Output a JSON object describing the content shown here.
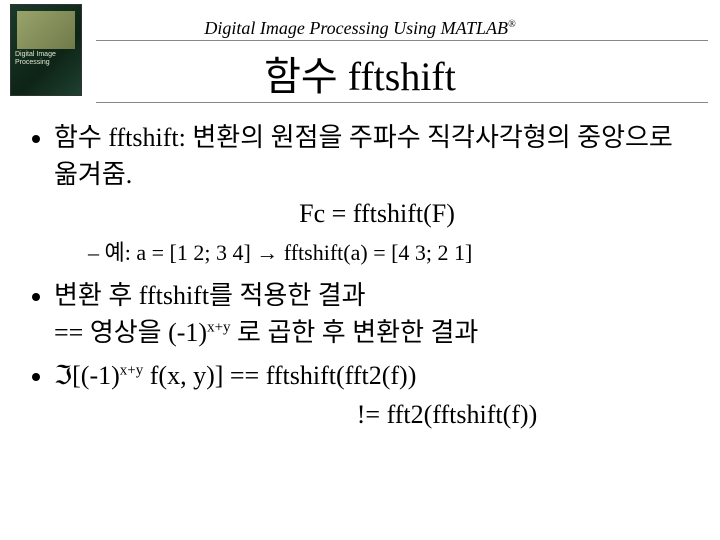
{
  "header_text_main": "Digital Image Processing Using MATLAB",
  "header_text_sup": "®",
  "title": "함수 fftshift",
  "book": {
    "line1": "Digital Image",
    "line2": "Processing"
  },
  "b1_lead": "함수 fftshift: ",
  "b1_rest": "변환의 원점을 주파수 직각사각형의 중앙으로 옮겨줌.",
  "formula": "Fc = fftshift(F)",
  "ex_lead": "예: ",
  "ex_rest": "a = [1 2; 3 4] → fftshift(a) = [4 3; 2 1]",
  "b2_line1": "변환 후 fftshift를 적용한 결과",
  "b2_eq": "== ",
  "b2_line2a": "영상을 (-1)",
  "b2_exp": "x+y",
  "b2_line2b": " 로 곱한 후 변환한 결과",
  "b3_im": "ℑ",
  "b3_lb": "[(-1)",
  "b3_exp": "x+y",
  "b3_mid": " f(x, y)] == fftshift(fft2(f))",
  "b3_ne": "!= fft2(fftshift(f))"
}
